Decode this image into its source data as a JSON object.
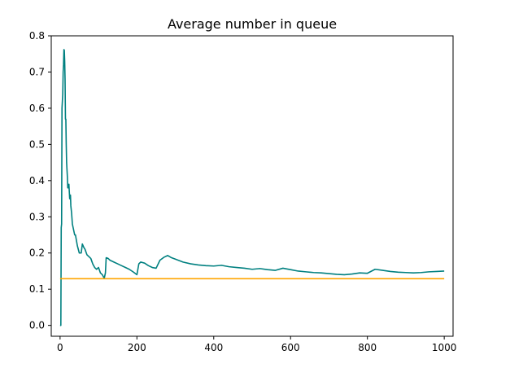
{
  "chart_data": {
    "type": "line",
    "title": "Average number in queue",
    "xlabel": "",
    "ylabel": "",
    "xlim": [
      -23,
      1023
    ],
    "ylim": [
      -0.03,
      0.8
    ],
    "x_ticks": [
      0,
      200,
      400,
      600,
      800,
      1000
    ],
    "y_ticks": [
      0.0,
      0.1,
      0.2,
      0.3,
      0.4,
      0.5,
      0.6,
      0.7,
      0.8
    ],
    "x_tick_labels": [
      "0",
      "200",
      "400",
      "600",
      "800",
      "1000"
    ],
    "y_tick_labels": [
      "0.0",
      "0.1",
      "0.2",
      "0.3",
      "0.4",
      "0.5",
      "0.6",
      "0.7",
      "0.8"
    ],
    "grid": false,
    "legend": null,
    "series": [
      {
        "color": "#008080",
        "x": [
          0,
          2,
          3,
          4,
          5,
          6,
          7,
          8,
          9,
          10,
          11,
          12,
          13,
          14,
          15,
          16,
          17,
          18,
          19,
          20,
          22,
          23,
          25,
          27,
          28,
          30,
          32,
          34,
          36,
          38,
          40,
          45,
          50,
          55,
          58,
          62,
          65,
          70,
          75,
          80,
          85,
          90,
          95,
          100,
          105,
          110,
          115,
          118,
          120,
          125,
          130,
          140,
          150,
          160,
          170,
          180,
          190,
          200,
          205,
          210,
          220,
          230,
          240,
          250,
          260,
          270,
          280,
          290,
          300,
          320,
          340,
          360,
          380,
          400,
          420,
          440,
          460,
          480,
          500,
          520,
          540,
          560,
          580,
          600,
          620,
          640,
          660,
          680,
          700,
          720,
          740,
          760,
          780,
          800,
          820,
          840,
          860,
          880,
          900,
          920,
          940,
          960,
          980,
          1000
        ],
        "y": [
          0.0,
          0.0,
          0.27,
          0.28,
          0.6,
          0.62,
          0.64,
          0.7,
          0.72,
          0.762,
          0.76,
          0.73,
          0.68,
          0.57,
          0.57,
          0.5,
          0.45,
          0.43,
          0.41,
          0.38,
          0.38,
          0.39,
          0.35,
          0.36,
          0.33,
          0.31,
          0.28,
          0.27,
          0.26,
          0.25,
          0.25,
          0.22,
          0.2,
          0.2,
          0.225,
          0.215,
          0.21,
          0.195,
          0.19,
          0.185,
          0.17,
          0.16,
          0.155,
          0.16,
          0.145,
          0.14,
          0.13,
          0.145,
          0.187,
          0.185,
          0.18,
          0.175,
          0.17,
          0.165,
          0.16,
          0.155,
          0.148,
          0.14,
          0.17,
          0.175,
          0.172,
          0.165,
          0.16,
          0.158,
          0.18,
          0.188,
          0.193,
          0.187,
          0.183,
          0.175,
          0.17,
          0.167,
          0.165,
          0.164,
          0.166,
          0.162,
          0.16,
          0.158,
          0.155,
          0.157,
          0.154,
          0.152,
          0.158,
          0.154,
          0.15,
          0.148,
          0.146,
          0.145,
          0.143,
          0.141,
          0.14,
          0.142,
          0.145,
          0.144,
          0.155,
          0.152,
          0.149,
          0.147,
          0.146,
          0.145,
          0.146,
          0.148,
          0.149,
          0.15
        ]
      },
      {
        "color": "#ffa500",
        "x": [
          0,
          1000
        ],
        "y": [
          0.129,
          0.129
        ]
      }
    ]
  }
}
